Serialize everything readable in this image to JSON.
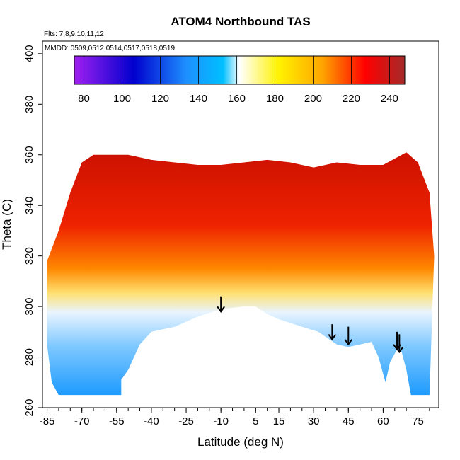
{
  "chart_data": {
    "type": "heatmap",
    "title": "ATOM4 Northbound TAS",
    "subtitle_flights": "Flts: 7,8,9,10,11,12",
    "subtitle_dates": "MMDD: 0509,0512,0514,0517,0518,0519",
    "xlabel": "Latitude (deg N)",
    "ylabel": "Theta (C)",
    "xlim": [
      -87,
      84
    ],
    "ylim": [
      260,
      405
    ],
    "x_ticks": [
      -85,
      -70,
      -55,
      -40,
      -25,
      -10,
      5,
      15,
      30,
      45,
      60,
      75
    ],
    "x_tick_labels": [
      "-85",
      "-70",
      "-55",
      "-40",
      "-25",
      "-10",
      "5",
      "15",
      "30",
      "45",
      "60",
      "75"
    ],
    "y_ticks": [
      260,
      280,
      300,
      320,
      340,
      360,
      380,
      400
    ],
    "y_tick_labels": [
      "260",
      "280",
      "300",
      "320",
      "340",
      "360",
      "380",
      "400"
    ],
    "colorbar": {
      "range": [
        75,
        248
      ],
      "ticks": [
        80,
        100,
        120,
        140,
        160,
        180,
        200,
        220,
        240
      ],
      "tick_labels": [
        "80",
        "100",
        "120",
        "140",
        "160",
        "180",
        "200",
        "220",
        "240"
      ],
      "colors": [
        "#a020f0",
        "#0000cd",
        "#00bfff",
        "#ffffff",
        "#ffff00",
        "#ffa500",
        "#ff0000",
        "#b22222"
      ]
    },
    "lower_boundary": [
      [
        -85,
        285
      ],
      [
        -83,
        270
      ],
      [
        -80,
        265
      ],
      [
        -70,
        265
      ],
      [
        -60,
        265
      ],
      [
        -53,
        265
      ],
      [
        -53,
        271
      ],
      [
        -50,
        275
      ],
      [
        -45,
        285
      ],
      [
        -40,
        290
      ],
      [
        -30,
        292
      ],
      [
        -20,
        296
      ],
      [
        -10,
        299
      ],
      [
        0,
        300
      ],
      [
        5,
        300
      ],
      [
        10,
        297
      ],
      [
        15,
        295
      ],
      [
        25,
        292
      ],
      [
        32,
        290
      ],
      [
        40,
        285
      ],
      [
        45,
        284
      ],
      [
        50,
        285
      ],
      [
        55,
        286
      ],
      [
        58,
        280
      ],
      [
        61,
        270
      ],
      [
        63,
        278
      ],
      [
        66,
        283
      ],
      [
        68,
        282
      ],
      [
        70,
        275
      ],
      [
        72,
        265
      ],
      [
        78,
        265
      ],
      [
        80,
        265
      ]
    ],
    "upper_boundary": [
      [
        -85,
        318
      ],
      [
        -80,
        330
      ],
      [
        -75,
        345
      ],
      [
        -70,
        357
      ],
      [
        -65,
        360
      ],
      [
        -60,
        360
      ],
      [
        -50,
        360
      ],
      [
        -40,
        358
      ],
      [
        -30,
        357
      ],
      [
        -20,
        356
      ],
      [
        -10,
        356
      ],
      [
        0,
        357
      ],
      [
        10,
        358
      ],
      [
        20,
        357
      ],
      [
        30,
        355
      ],
      [
        40,
        357
      ],
      [
        50,
        356
      ],
      [
        60,
        356
      ],
      [
        70,
        361
      ],
      [
        75,
        357
      ],
      [
        80,
        345
      ],
      [
        82,
        320
      ]
    ],
    "wind_arrows": [
      {
        "lat": -10,
        "theta_start": 304,
        "theta_end": 298
      },
      {
        "lat": 38,
        "theta_start": 293,
        "theta_end": 287
      },
      {
        "lat": 45,
        "theta_start": 292,
        "theta_end": 285
      },
      {
        "lat": 66,
        "theta_start": 290,
        "theta_end": 283
      },
      {
        "lat": 67,
        "theta_start": 289,
        "theta_end": 282
      }
    ]
  }
}
